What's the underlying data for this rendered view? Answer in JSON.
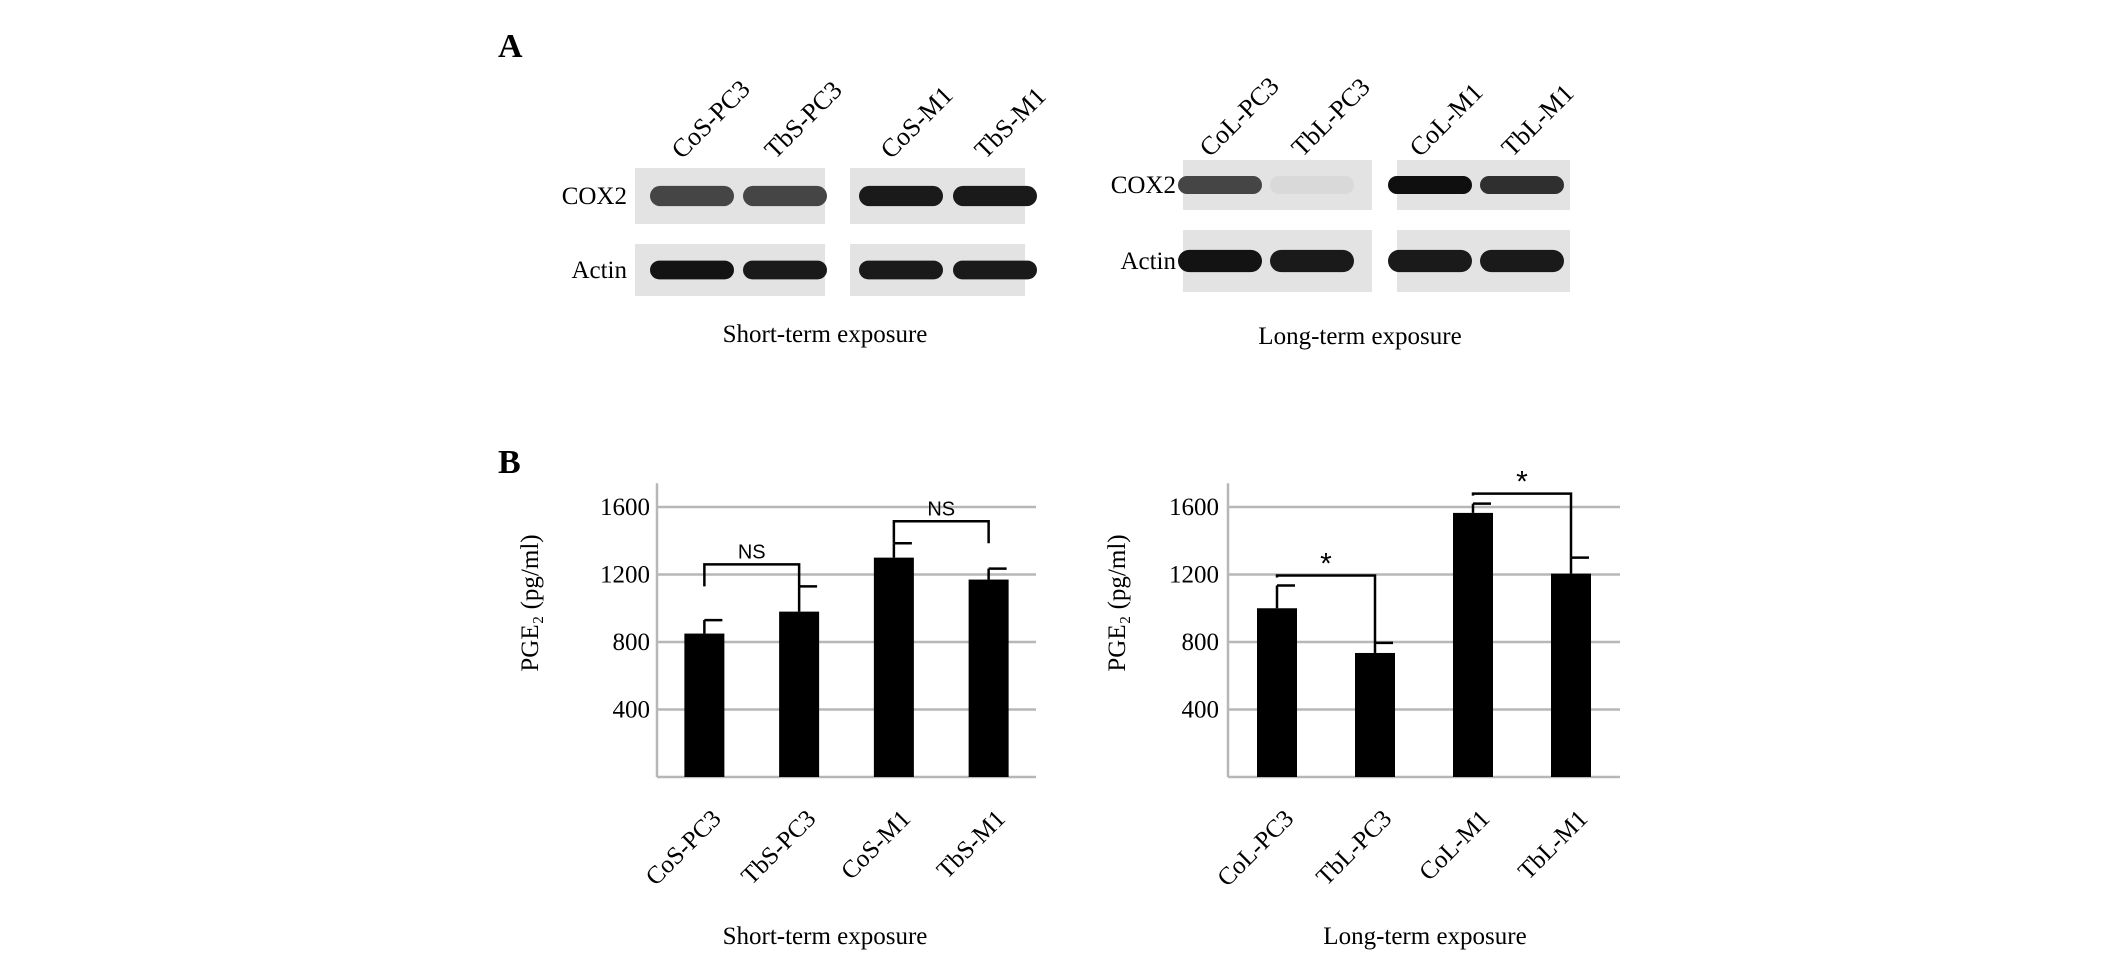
{
  "panel_a": {
    "letter": "A",
    "blots": [
      {
        "lanes": [
          "CoS-PC3",
          "TbS-PC3",
          "CoS-M1",
          "TbS-M1"
        ],
        "rows": [
          "COX2",
          "Actin"
        ],
        "caption": "Short-term exposure",
        "intensities": [
          [
            0.75,
            0.75,
            0.95,
            0.95
          ],
          [
            0.98,
            0.95,
            0.95,
            0.95
          ]
        ]
      },
      {
        "lanes": [
          "CoL-PC3",
          "TbL-PC3",
          "CoL-M1",
          "TbL-M1"
        ],
        "rows": [
          "COX2",
          "Actin"
        ],
        "caption": "Long-term exposure",
        "intensities": [
          [
            0.75,
            0.06,
            1.0,
            0.85
          ],
          [
            0.98,
            0.95,
            0.95,
            0.95
          ]
        ]
      }
    ]
  },
  "panel_b": {
    "letter": "B"
  },
  "chart_data": [
    {
      "type": "bar",
      "categories": [
        "CoS-PC3",
        "TbS-PC3",
        "CoS-M1",
        "TbS-M1"
      ],
      "values": [
        850,
        980,
        1300,
        1170
      ],
      "errors": [
        80,
        150,
        85,
        65
      ],
      "ylabel": "PGE₂ (pg/ml)",
      "yticks": [
        400,
        800,
        1200,
        1600
      ],
      "ylim": [
        0,
        1800
      ],
      "xlabel": "Short-term exposure",
      "grid": true,
      "significance": [
        {
          "pair": [
            0,
            1
          ],
          "label": "NS"
        },
        {
          "pair": [
            2,
            3
          ],
          "label": "NS"
        }
      ]
    },
    {
      "type": "bar",
      "categories": [
        "CoL-PC3",
        "TbL-PC3",
        "CoL-M1",
        "TbL-M1"
      ],
      "values": [
        1000,
        735,
        1565,
        1205
      ],
      "errors": [
        135,
        60,
        55,
        95
      ],
      "ylabel": "PGE₂ (pg/ml)",
      "yticks": [
        400,
        800,
        1200,
        1600
      ],
      "ylim": [
        0,
        1800
      ],
      "xlabel": "Long-term exposure",
      "grid": true,
      "significance": [
        {
          "pair": [
            0,
            1
          ],
          "label": "*"
        },
        {
          "pair": [
            2,
            3
          ],
          "label": "*"
        }
      ]
    }
  ]
}
